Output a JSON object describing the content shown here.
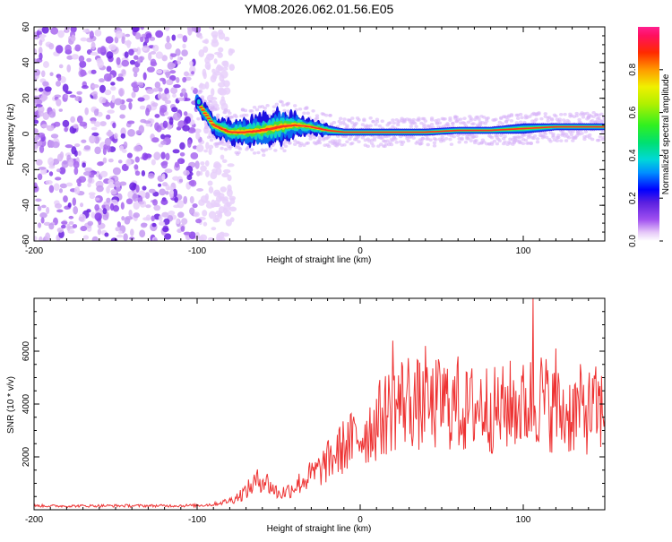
{
  "title": "YM08.2026.062.01.56.E05",
  "chart_data": [
    {
      "type": "heatmap",
      "xlabel": "Height of straight line (km)",
      "ylabel": "Frequency (Hz)",
      "xlim": [
        -200,
        150
      ],
      "ylim": [
        -60,
        60
      ],
      "x_ticks": [
        -200,
        -100,
        0,
        100
      ],
      "y_ticks": [
        -60,
        -40,
        -20,
        0,
        20,
        40,
        60
      ],
      "grid": false,
      "colorbar": {
        "label": "Normalized spectral amplitude",
        "range": [
          0,
          1
        ],
        "ticks": [
          0,
          0.2,
          0.4,
          0.6,
          0.8
        ],
        "tick_labels": [
          "0.0",
          "0.2",
          "0.4",
          "0.6",
          "0.8"
        ]
      },
      "features": {
        "noise_region_x": [
          -200,
          -90
        ],
        "band": {
          "x": [
            -100,
            -90,
            -80,
            -70,
            -60,
            -50,
            -40,
            -30,
            -20,
            -10,
            0,
            20,
            40,
            60,
            80,
            100,
            120,
            150
          ],
          "center_freq": [
            18,
            5,
            1,
            1,
            2,
            4,
            5,
            4,
            2,
            1,
            1,
            1,
            1,
            2,
            2,
            3,
            4,
            4
          ],
          "half_width": [
            4,
            5,
            6,
            7,
            8,
            9,
            6,
            4,
            3,
            2,
            2,
            2,
            2,
            2,
            2,
            3,
            2,
            2
          ]
        }
      }
    },
    {
      "type": "line",
      "xlabel": "Height of straight line (km)",
      "ylabel": "SNR (10 * v/v)",
      "xlim": [
        -200,
        150
      ],
      "ylim": [
        0,
        8000
      ],
      "x_ticks": [
        -200,
        -100,
        0,
        100
      ],
      "y_ticks": [
        2000,
        4000,
        6000
      ],
      "grid": false,
      "line_color": "#ee3333",
      "series": [
        {
          "x": [
            -200,
            -180,
            -160,
            -140,
            -120,
            -100,
            -90,
            -80,
            -75,
            -70,
            -65,
            -60,
            -55,
            -50,
            -45,
            -40,
            -35,
            -30,
            -25,
            -20,
            -15,
            -10,
            -5,
            0,
            5,
            10,
            15,
            20,
            25,
            30,
            35,
            40,
            45,
            50,
            55,
            60,
            65,
            70,
            75,
            80,
            85,
            90,
            95,
            100,
            105,
            110,
            115,
            120,
            125,
            130,
            135,
            140,
            145,
            150
          ],
          "values": [
            150,
            140,
            150,
            150,
            150,
            160,
            200,
            350,
            500,
            700,
            1000,
            1200,
            900,
            600,
            700,
            900,
            1100,
            1300,
            1500,
            1800,
            2100,
            2400,
            2600,
            2800,
            3000,
            3300,
            3600,
            3900,
            4100,
            4200,
            4000,
            3700,
            3900,
            4100,
            4000,
            3800,
            3700,
            3900,
            4000,
            3800,
            3700,
            3900,
            4000,
            3900,
            4100,
            4300,
            4000,
            3800,
            3600,
            3700,
            3800,
            3700,
            3800,
            3700
          ]
        }
      ],
      "spikes": [
        {
          "x": 20,
          "y": 6400
        },
        {
          "x": 40,
          "y": 6200
        },
        {
          "x": 60,
          "y": 5800
        },
        {
          "x": 106,
          "y": 8000
        },
        {
          "x": 120,
          "y": 6100
        }
      ]
    }
  ]
}
